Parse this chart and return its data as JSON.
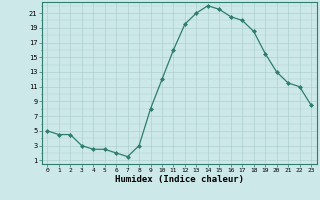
{
  "x": [
    0,
    1,
    2,
    3,
    4,
    5,
    6,
    7,
    8,
    9,
    10,
    11,
    12,
    13,
    14,
    15,
    16,
    17,
    18,
    19,
    20,
    21,
    22,
    23
  ],
  "y": [
    5,
    4.5,
    4.5,
    3,
    2.5,
    2.5,
    2,
    1.5,
    3,
    8,
    12,
    16,
    19.5,
    21,
    22,
    21.5,
    20.5,
    20,
    18.5,
    15.5,
    13,
    11.5,
    11,
    8.5
  ],
  "line_color": "#2e7d6e",
  "bg_color": "#cce8e8",
  "grid_color": "#b0d0d0",
  "xlabel": "Humidex (Indice chaleur)",
  "yticks": [
    1,
    3,
    5,
    7,
    9,
    11,
    13,
    15,
    17,
    19,
    21
  ],
  "xticks": [
    0,
    1,
    2,
    3,
    4,
    5,
    6,
    7,
    8,
    9,
    10,
    11,
    12,
    13,
    14,
    15,
    16,
    17,
    18,
    19,
    20,
    21,
    22,
    23
  ],
  "ylim": [
    0.5,
    22.5
  ],
  "xlim": [
    -0.5,
    23.5
  ],
  "marker": "D",
  "markersize": 2,
  "linewidth": 0.9
}
